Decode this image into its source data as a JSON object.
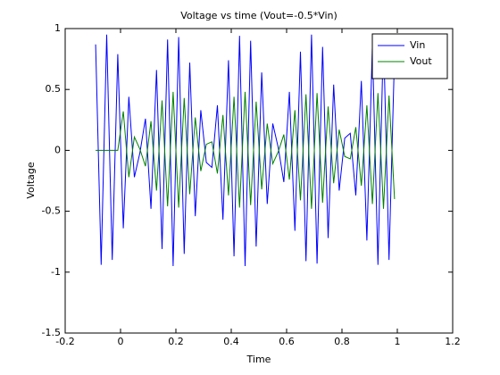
{
  "chart_data": {
    "type": "line",
    "title": "Voltage vs time (Vout=-0.5*Vin)",
    "xlabel": "Time",
    "ylabel": "Voltage",
    "x": [
      -0.09,
      -0.07,
      -0.05,
      -0.03,
      -0.01,
      0.01,
      0.03,
      0.05,
      0.07,
      0.09,
      0.11,
      0.13,
      0.15,
      0.17,
      0.19,
      0.21,
      0.23,
      0.25,
      0.27,
      0.29,
      0.31,
      0.33,
      0.35,
      0.37,
      0.39,
      0.41,
      0.43,
      0.45,
      0.47,
      0.49,
      0.51,
      0.53,
      0.55,
      0.57,
      0.59,
      0.61,
      0.63,
      0.65,
      0.67,
      0.69,
      0.71,
      0.73,
      0.75,
      0.77,
      0.79,
      0.81,
      0.83,
      0.85,
      0.87,
      0.89,
      0.91,
      0.93,
      0.95,
      0.97,
      0.99
    ],
    "series": [
      {
        "name": "Vin",
        "color": "#0000ff",
        "values": [
          0.87,
          -0.94,
          0.95,
          -0.9,
          0.79,
          -0.64,
          0.44,
          -0.22,
          -0.02,
          0.26,
          -0.48,
          0.66,
          -0.81,
          0.91,
          -0.95,
          0.93,
          -0.85,
          0.72,
          -0.54,
          0.33,
          -0.1,
          -0.14,
          0.37,
          -0.57,
          0.74,
          -0.87,
          0.94,
          -0.95,
          0.9,
          -0.79,
          0.64,
          -0.44,
          0.22,
          0.02,
          -0.26,
          0.48,
          -0.66,
          0.81,
          -0.91,
          0.95,
          -0.93,
          0.85,
          -0.72,
          0.54,
          -0.33,
          0.1,
          0.14,
          -0.37,
          0.57,
          -0.74,
          0.87,
          -0.94,
          0.95,
          -0.9,
          0.79
        ]
      },
      {
        "name": "Vout",
        "color": "#008000",
        "values": [
          0,
          0,
          0,
          0,
          0,
          0.32,
          -0.22,
          0.11,
          0.01,
          -0.13,
          0.24,
          -0.33,
          0.41,
          -0.46,
          0.48,
          -0.47,
          0.43,
          -0.36,
          0.27,
          -0.17,
          0.05,
          0.07,
          -0.19,
          0.29,
          -0.37,
          0.44,
          -0.47,
          0.48,
          -0.45,
          0.4,
          -0.32,
          0.22,
          -0.11,
          -0.01,
          0.13,
          -0.24,
          0.33,
          -0.41,
          0.46,
          -0.48,
          0.47,
          -0.43,
          0.36,
          -0.27,
          0.17,
          -0.05,
          -0.07,
          0.19,
          -0.29,
          0.37,
          -0.44,
          0.47,
          -0.48,
          0.45,
          -0.4
        ]
      }
    ],
    "xlim": [
      -0.2,
      1.2
    ],
    "xticks": [
      -0.2,
      0,
      0.2,
      0.4,
      0.6,
      0.8,
      1,
      1.2
    ],
    "ylim": [
      -1.5,
      1
    ],
    "yticks": [
      -1.5,
      -1,
      -0.5,
      0,
      0.5,
      1
    ],
    "grid": false,
    "legend": "northeast"
  }
}
